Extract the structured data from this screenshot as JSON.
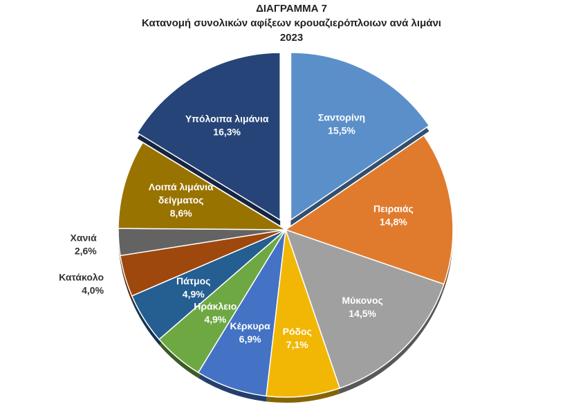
{
  "chart_data": {
    "type": "pie",
    "title": "ΔΙΑΓΡΑΜΜΑ 7",
    "subtitle": "Κατανομή συνολικών αφίξεων κρουαζιερόπλοιων ανά λιμάνι",
    "year": "2023",
    "slices": [
      {
        "label": "Σαντορίνη",
        "value_label": "15,5%",
        "value": 15.5,
        "color": "#5B8FC9",
        "exploded": true
      },
      {
        "label": "Πειραιάς",
        "value_label": "14,8%",
        "value": 14.8,
        "color": "#E07B2E"
      },
      {
        "label": "Μύκονος",
        "value_label": "14,5%",
        "value": 14.5,
        "color": "#A0A0A0"
      },
      {
        "label": "Ρόδος",
        "value_label": "7,1%",
        "value": 7.1,
        "color": "#F2B705"
      },
      {
        "label": "Κέρκυρα",
        "value_label": "6,9%",
        "value": 6.9,
        "color": "#4472C4"
      },
      {
        "label": "Ηράκλειο",
        "value_label": "4,9%",
        "value": 4.9,
        "color": "#6EA843"
      },
      {
        "label": "Πάτμος",
        "value_label": "4,9%",
        "value": 4.9,
        "color": "#255E91"
      },
      {
        "label": "Κατάκολο",
        "value_label": "4,0%",
        "value": 4.0,
        "color": "#9E480E",
        "outside": true
      },
      {
        "label": "Χανιά",
        "value_label": "2,6%",
        "value": 2.6,
        "color": "#636363",
        "outside": true
      },
      {
        "label": "Λοιπά λιμάνια δείγματος",
        "value_label": "8,6%",
        "value": 8.6,
        "color": "#997300"
      },
      {
        "label": "Υπόλοιπα λιμάνια",
        "value_label": "16,3%",
        "value": 16.3,
        "color": "#264478",
        "exploded": true
      }
    ]
  }
}
